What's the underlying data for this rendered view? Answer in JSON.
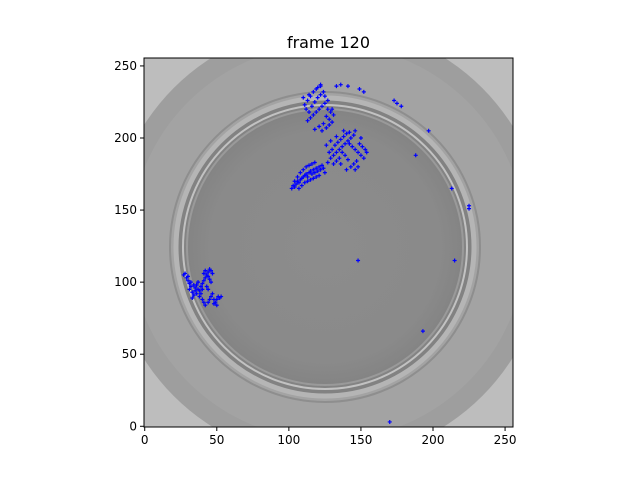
{
  "chart_data": {
    "type": "scatter",
    "title": "frame 120",
    "background": "grayscale-image (petri dish)",
    "xlim": [
      -0.5,
      255.5
    ],
    "ylim": [
      255.5,
      -0.5
    ],
    "x_ticks": [
      0,
      50,
      100,
      150,
      200,
      250
    ],
    "y_ticks": [
      0,
      50,
      100,
      150,
      200,
      250
    ],
    "grid": false,
    "marker_color": "#0000ff",
    "marker": "plus",
    "points": [
      [
        170,
        3
      ],
      [
        193,
        66
      ],
      [
        215,
        115
      ],
      [
        148,
        115
      ],
      [
        225,
        151
      ],
      [
        225,
        153
      ],
      [
        213,
        165
      ],
      [
        188,
        188
      ],
      [
        197,
        205
      ],
      [
        178,
        222
      ],
      [
        175,
        224
      ],
      [
        173,
        226
      ],
      [
        152,
        232
      ],
      [
        149,
        234
      ],
      [
        141,
        236
      ],
      [
        136,
        237
      ],
      [
        133,
        236
      ],
      [
        122,
        237
      ],
      [
        27,
        105
      ],
      [
        29,
        103
      ],
      [
        30,
        101
      ],
      [
        31,
        99
      ],
      [
        32,
        97
      ],
      [
        31,
        95
      ],
      [
        33,
        93
      ],
      [
        34,
        91
      ],
      [
        33,
        89
      ],
      [
        35,
        96
      ],
      [
        36,
        98
      ],
      [
        37,
        100
      ],
      [
        38,
        94
      ],
      [
        39,
        97
      ],
      [
        40,
        99
      ],
      [
        41,
        101
      ],
      [
        42,
        103
      ],
      [
        43,
        105
      ],
      [
        44,
        107
      ],
      [
        45,
        109
      ],
      [
        42,
        108
      ],
      [
        41,
        106
      ],
      [
        44,
        104
      ],
      [
        45,
        102
      ],
      [
        46,
        100
      ],
      [
        39,
        92
      ],
      [
        38,
        90
      ],
      [
        40,
        88
      ],
      [
        41,
        86
      ],
      [
        42,
        84
      ],
      [
        44,
        86
      ],
      [
        45,
        88
      ],
      [
        46,
        90
      ],
      [
        47,
        92
      ],
      [
        48,
        88
      ],
      [
        49,
        86
      ],
      [
        50,
        88
      ],
      [
        51,
        90
      ],
      [
        52,
        89
      ],
      [
        53,
        90
      ],
      [
        50,
        84
      ],
      [
        48,
        85
      ],
      [
        36,
        92
      ],
      [
        35,
        94
      ],
      [
        34,
        98
      ],
      [
        32,
        100
      ],
      [
        30,
        104
      ],
      [
        28,
        106
      ],
      [
        37,
        95
      ],
      [
        43,
        97
      ],
      [
        44,
        95
      ],
      [
        40,
        95
      ],
      [
        46,
        108
      ],
      [
        47,
        106
      ],
      [
        102,
        165
      ],
      [
        103,
        167
      ],
      [
        104,
        166
      ],
      [
        105,
        168
      ],
      [
        106,
        170
      ],
      [
        107,
        169
      ],
      [
        108,
        171
      ],
      [
        109,
        172
      ],
      [
        110,
        173
      ],
      [
        111,
        174
      ],
      [
        112,
        175
      ],
      [
        113,
        173
      ],
      [
        114,
        176
      ],
      [
        115,
        177
      ],
      [
        116,
        175
      ],
      [
        117,
        178
      ],
      [
        118,
        176
      ],
      [
        119,
        179
      ],
      [
        120,
        177
      ],
      [
        121,
        180
      ],
      [
        122,
        178
      ],
      [
        123,
        181
      ],
      [
        124,
        179
      ],
      [
        125,
        176
      ],
      [
        104,
        170
      ],
      [
        106,
        173
      ],
      [
        108,
        176
      ],
      [
        110,
        178
      ],
      [
        112,
        180
      ],
      [
        114,
        181
      ],
      [
        116,
        182
      ],
      [
        118,
        183
      ],
      [
        107,
        165
      ],
      [
        109,
        167
      ],
      [
        111,
        169
      ],
      [
        113,
        170
      ],
      [
        115,
        171
      ],
      [
        117,
        172
      ],
      [
        119,
        173
      ],
      [
        121,
        174
      ],
      [
        127,
        183
      ],
      [
        129,
        186
      ],
      [
        131,
        188
      ],
      [
        133,
        190
      ],
      [
        135,
        192
      ],
      [
        137,
        194
      ],
      [
        139,
        196
      ],
      [
        141,
        198
      ],
      [
        143,
        200
      ],
      [
        145,
        202
      ],
      [
        130,
        192
      ],
      [
        132,
        195
      ],
      [
        134,
        197
      ],
      [
        136,
        199
      ],
      [
        138,
        201
      ],
      [
        140,
        203
      ],
      [
        142,
        196
      ],
      [
        144,
        194
      ],
      [
        146,
        192
      ],
      [
        148,
        190
      ],
      [
        150,
        188
      ],
      [
        152,
        186
      ],
      [
        147,
        184
      ],
      [
        145,
        182
      ],
      [
        143,
        180
      ],
      [
        141,
        185
      ],
      [
        139,
        188
      ],
      [
        137,
        190
      ],
      [
        135,
        186
      ],
      [
        133,
        184
      ],
      [
        131,
        182
      ],
      [
        149,
        196
      ],
      [
        151,
        194
      ],
      [
        153,
        192
      ],
      [
        154,
        190
      ],
      [
        148,
        180
      ],
      [
        146,
        178
      ],
      [
        140,
        178
      ],
      [
        136,
        182
      ],
      [
        128,
        190
      ],
      [
        126,
        195
      ],
      [
        129,
        198
      ],
      [
        133,
        201
      ],
      [
        138,
        205
      ],
      [
        142,
        204
      ],
      [
        146,
        205
      ],
      [
        150,
        200
      ],
      [
        113,
        212
      ],
      [
        115,
        214
      ],
      [
        117,
        216
      ],
      [
        119,
        218
      ],
      [
        121,
        220
      ],
      [
        123,
        222
      ],
      [
        125,
        224
      ],
      [
        127,
        226
      ],
      [
        116,
        222
      ],
      [
        118,
        225
      ],
      [
        120,
        228
      ],
      [
        122,
        230
      ],
      [
        124,
        232
      ],
      [
        119,
        234
      ],
      [
        117,
        232
      ],
      [
        115,
        229
      ],
      [
        113,
        226
      ],
      [
        111,
        223
      ],
      [
        112,
        220
      ],
      [
        114,
        218
      ],
      [
        126,
        215
      ],
      [
        128,
        213
      ],
      [
        130,
        211
      ],
      [
        129,
        218
      ],
      [
        131,
        216
      ],
      [
        127,
        220
      ],
      [
        124,
        210
      ],
      [
        121,
        208
      ],
      [
        118,
        206
      ],
      [
        123,
        205
      ],
      [
        126,
        207
      ],
      [
        128,
        209
      ],
      [
        114,
        230
      ],
      [
        110,
        228
      ],
      [
        125,
        229
      ],
      [
        130,
        220
      ],
      [
        122,
        236
      ],
      [
        120,
        235
      ]
    ]
  }
}
